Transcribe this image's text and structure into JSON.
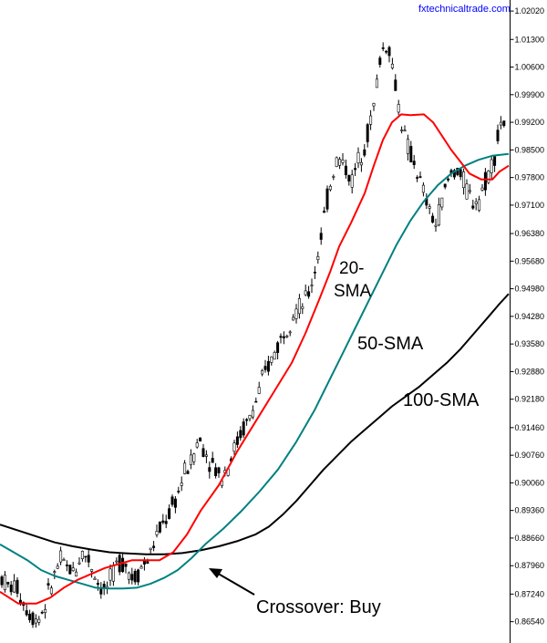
{
  "watermark": "fxtechnicaltrade.com",
  "chart_data": {
    "type": "candlestick",
    "ylim": [
      0.86,
      1.023
    ],
    "y_ticks": [
      "1.02020",
      "1.01300",
      "1.00600",
      "0.99900",
      "0.99200",
      "0.98500",
      "0.97800",
      "0.97100",
      "0.96380",
      "0.95680",
      "0.94980",
      "0.94280",
      "0.93580",
      "0.92880",
      "0.92180",
      "0.91460",
      "0.90760",
      "0.90060",
      "0.89360",
      "0.88660",
      "0.87960",
      "0.87240",
      "0.86540"
    ],
    "grid": false,
    "legend": "none",
    "colors": {
      "sma20": "#ff0000",
      "sma50": "#008080",
      "sma100": "#000000",
      "candle": "#000000",
      "axis": "#000000"
    },
    "annotations": {
      "sma20_line1": "20-",
      "sma20_line2": "SMA",
      "sma50": "50-SMA",
      "sma100": "100-SMA",
      "crossover": "Crossover: Buy"
    },
    "sma20": [
      [
        0,
        0.873
      ],
      [
        20,
        0.87
      ],
      [
        40,
        0.87
      ],
      [
        55,
        0.8715
      ],
      [
        70,
        0.874
      ],
      [
        85,
        0.876
      ],
      [
        100,
        0.8775
      ],
      [
        115,
        0.879
      ],
      [
        130,
        0.88
      ],
      [
        145,
        0.881
      ],
      [
        160,
        0.881
      ],
      [
        175,
        0.881
      ],
      [
        190,
        0.883
      ],
      [
        205,
        0.8875
      ],
      [
        220,
        0.8935
      ],
      [
        240,
        0.9
      ],
      [
        260,
        0.9085
      ],
      [
        280,
        0.916
      ],
      [
        300,
        0.9235
      ],
      [
        320,
        0.931
      ],
      [
        335,
        0.9385
      ],
      [
        350,
        0.947
      ],
      [
        362,
        0.954
      ],
      [
        372,
        0.9605
      ],
      [
        385,
        0.9665
      ],
      [
        400,
        0.974
      ],
      [
        410,
        0.981
      ],
      [
        420,
        0.9875
      ],
      [
        430,
        0.992
      ],
      [
        440,
        0.994
      ],
      [
        450,
        0.9938
      ],
      [
        465,
        0.994
      ],
      [
        475,
        0.992
      ],
      [
        485,
        0.9885
      ],
      [
        495,
        0.985
      ],
      [
        505,
        0.982
      ],
      [
        515,
        0.979
      ],
      [
        528,
        0.9775
      ],
      [
        540,
        0.9775
      ],
      [
        548,
        0.9795
      ],
      [
        558,
        0.981
      ]
    ],
    "sma50": [
      [
        0,
        0.885
      ],
      [
        15,
        0.883
      ],
      [
        30,
        0.881
      ],
      [
        45,
        0.8785
      ],
      [
        60,
        0.877
      ],
      [
        75,
        0.876
      ],
      [
        90,
        0.875
      ],
      [
        105,
        0.874
      ],
      [
        120,
        0.8738
      ],
      [
        135,
        0.8738
      ],
      [
        150,
        0.874
      ],
      [
        165,
        0.875
      ],
      [
        180,
        0.8765
      ],
      [
        195,
        0.8785
      ],
      [
        210,
        0.8815
      ],
      [
        225,
        0.885
      ],
      [
        245,
        0.889
      ],
      [
        265,
        0.8935
      ],
      [
        285,
        0.8985
      ],
      [
        305,
        0.904
      ],
      [
        325,
        0.911
      ],
      [
        345,
        0.919
      ],
      [
        360,
        0.926
      ],
      [
        375,
        0.933
      ],
      [
        390,
        0.94
      ],
      [
        405,
        0.947
      ],
      [
        420,
        0.954
      ],
      [
        435,
        0.961
      ],
      [
        450,
        0.967
      ],
      [
        465,
        0.972
      ],
      [
        480,
        0.976
      ],
      [
        495,
        0.979
      ],
      [
        510,
        0.981
      ],
      [
        525,
        0.9825
      ],
      [
        540,
        0.9835
      ],
      [
        558,
        0.984
      ]
    ],
    "sma100": [
      [
        0,
        0.89
      ],
      [
        20,
        0.8885
      ],
      [
        40,
        0.887
      ],
      [
        60,
        0.8855
      ],
      [
        80,
        0.8845
      ],
      [
        100,
        0.8837
      ],
      [
        120,
        0.883
      ],
      [
        140,
        0.8827
      ],
      [
        160,
        0.8825
      ],
      [
        180,
        0.8825
      ],
      [
        200,
        0.8828
      ],
      [
        220,
        0.8835
      ],
      [
        240,
        0.8845
      ],
      [
        260,
        0.8858
      ],
      [
        280,
        0.8875
      ],
      [
        295,
        0.8895
      ],
      [
        310,
        0.8925
      ],
      [
        325,
        0.896
      ],
      [
        340,
        0.9
      ],
      [
        355,
        0.904
      ],
      [
        370,
        0.9075
      ],
      [
        385,
        0.911
      ],
      [
        400,
        0.914
      ],
      [
        415,
        0.917
      ],
      [
        430,
        0.92
      ],
      [
        445,
        0.9225
      ],
      [
        460,
        0.925
      ],
      [
        475,
        0.928
      ],
      [
        490,
        0.931
      ],
      [
        505,
        0.9345
      ],
      [
        520,
        0.9385
      ],
      [
        535,
        0.9425
      ],
      [
        548,
        0.946
      ],
      [
        558,
        0.9485
      ]
    ],
    "candle_path": [
      [
        2,
        0.8765
      ],
      [
        10,
        0.874
      ],
      [
        18,
        0.8745
      ],
      [
        26,
        0.87
      ],
      [
        34,
        0.867
      ],
      [
        42,
        0.866
      ],
      [
        50,
        0.87
      ],
      [
        58,
        0.876
      ],
      [
        66,
        0.881
      ],
      [
        74,
        0.879
      ],
      [
        82,
        0.878
      ],
      [
        90,
        0.883
      ],
      [
        98,
        0.881
      ],
      [
        106,
        0.876
      ],
      [
        114,
        0.873
      ],
      [
        122,
        0.876
      ],
      [
        130,
        0.881
      ],
      [
        138,
        0.88
      ],
      [
        146,
        0.876
      ],
      [
        154,
        0.879
      ],
      [
        162,
        0.881
      ],
      [
        170,
        0.886
      ],
      [
        178,
        0.89
      ],
      [
        186,
        0.893
      ],
      [
        194,
        0.897
      ],
      [
        202,
        0.903
      ],
      [
        210,
        0.906
      ],
      [
        218,
        0.912
      ],
      [
        226,
        0.908
      ],
      [
        234,
        0.905
      ],
      [
        242,
        0.902
      ],
      [
        250,
        0.905
      ],
      [
        258,
        0.91
      ],
      [
        266,
        0.914
      ],
      [
        274,
        0.917
      ],
      [
        282,
        0.922
      ],
      [
        290,
        0.928
      ],
      [
        298,
        0.932
      ],
      [
        306,
        0.936
      ],
      [
        314,
        0.94
      ],
      [
        322,
        0.944
      ],
      [
        330,
        0.945
      ],
      [
        338,
        0.948
      ],
      [
        346,
        0.955
      ],
      [
        354,
        0.966
      ],
      [
        362,
        0.976
      ],
      [
        370,
        0.983
      ],
      [
        378,
        0.981
      ],
      [
        386,
        0.977
      ],
      [
        394,
        0.983
      ],
      [
        402,
        0.988
      ],
      [
        410,
        0.996
      ],
      [
        418,
        1.01
      ],
      [
        426,
        1.012
      ],
      [
        432,
        1.004
      ],
      [
        438,
        0.995
      ],
      [
        446,
        0.986
      ],
      [
        454,
        0.982
      ],
      [
        462,
        0.976
      ],
      [
        470,
        0.97
      ],
      [
        478,
        0.966
      ],
      [
        486,
        0.973
      ],
      [
        494,
        0.979
      ],
      [
        502,
        0.98
      ],
      [
        510,
        0.976
      ],
      [
        518,
        0.972
      ],
      [
        526,
        0.973
      ],
      [
        534,
        0.978
      ],
      [
        542,
        0.983
      ],
      [
        550,
        0.993
      ],
      [
        556,
        0.99
      ]
    ]
  }
}
